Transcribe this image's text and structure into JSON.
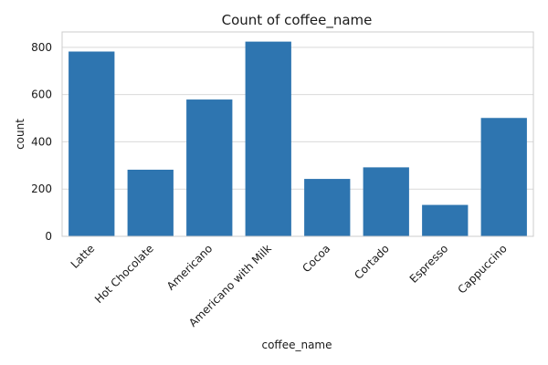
{
  "chart_data": {
    "type": "bar",
    "title": "Count of coffee_name",
    "xlabel": "coffee_name",
    "ylabel": "count",
    "categories": [
      "Latte",
      "Hot Chocolate",
      "Americano",
      "Americano with Milk",
      "Cocoa",
      "Cortado",
      "Espresso",
      "Cappuccino"
    ],
    "values": [
      782,
      282,
      579,
      824,
      243,
      292,
      133,
      501
    ],
    "yticks": [
      0,
      200,
      400,
      600,
      800
    ],
    "ylim": [
      0,
      865
    ],
    "grid": "horizontal",
    "bar_color": "#2e75b0"
  }
}
